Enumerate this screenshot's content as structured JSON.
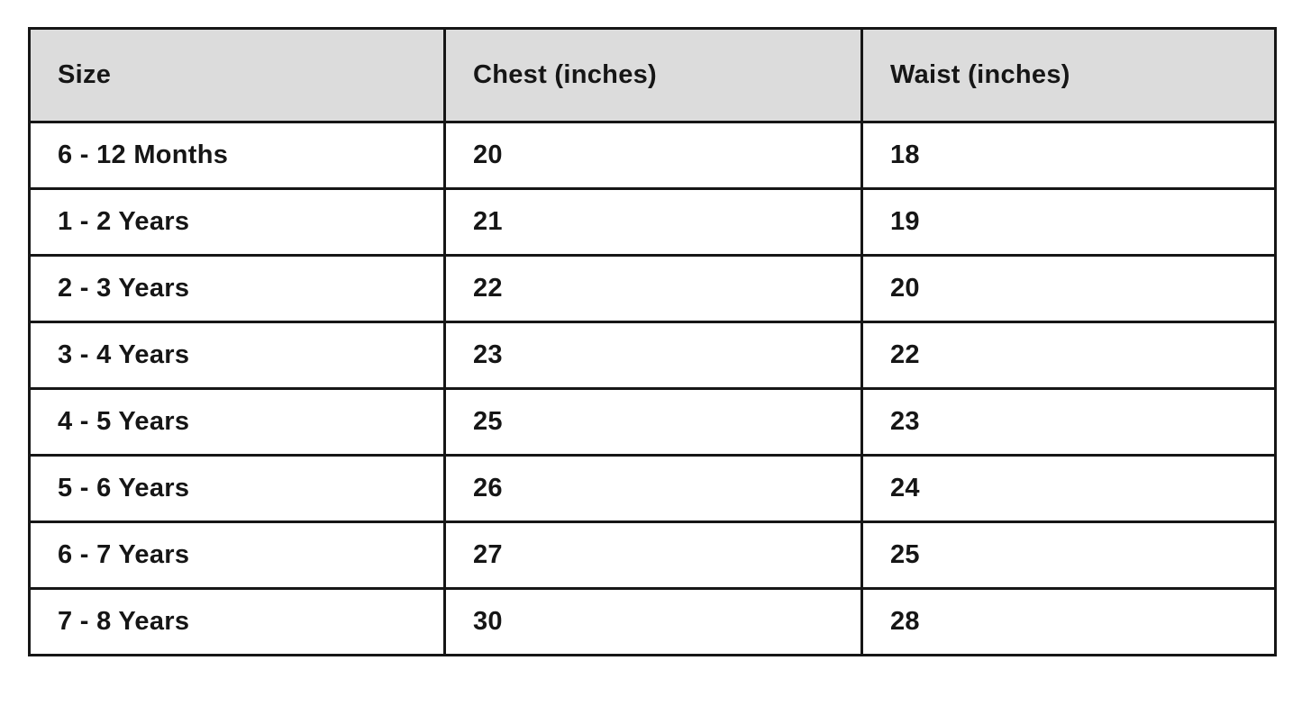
{
  "table": {
    "headers": {
      "size": "Size",
      "chest": "Chest (inches)",
      "waist": "Waist (inches)"
    },
    "rows": [
      {
        "size": "6 - 12 Months",
        "chest": "20",
        "waist": "18"
      },
      {
        "size": "1 - 2 Years",
        "chest": "21",
        "waist": "19"
      },
      {
        "size": "2 - 3 Years",
        "chest": "22",
        "waist": "20"
      },
      {
        "size": "3 - 4 Years",
        "chest": "23",
        "waist": "22"
      },
      {
        "size": "4 - 5 Years",
        "chest": "25",
        "waist": "23"
      },
      {
        "size": "5 - 6 Years",
        "chest": "26",
        "waist": "24"
      },
      {
        "size": "6 - 7 Years",
        "chest": "27",
        "waist": "25"
      },
      {
        "size": "7 - 8 Years",
        "chest": "30",
        "waist": "28"
      }
    ]
  },
  "chart_data": {
    "type": "table",
    "columns": [
      "Size",
      "Chest (inches)",
      "Waist (inches)"
    ],
    "rows": [
      [
        "6 - 12 Months",
        20,
        18
      ],
      [
        "1 - 2 Years",
        21,
        19
      ],
      [
        "2 - 3 Years",
        22,
        20
      ],
      [
        "3 - 4 Years",
        23,
        22
      ],
      [
        "4 - 5 Years",
        25,
        23
      ],
      [
        "5 - 6 Years",
        26,
        24
      ],
      [
        "6 - 7 Years",
        27,
        25
      ],
      [
        "7 - 8 Years",
        30,
        28
      ]
    ]
  },
  "colors": {
    "header_bg": "#dcdcdc",
    "row_bg": "#ffffff",
    "border": "#161616",
    "text": "#161616"
  }
}
